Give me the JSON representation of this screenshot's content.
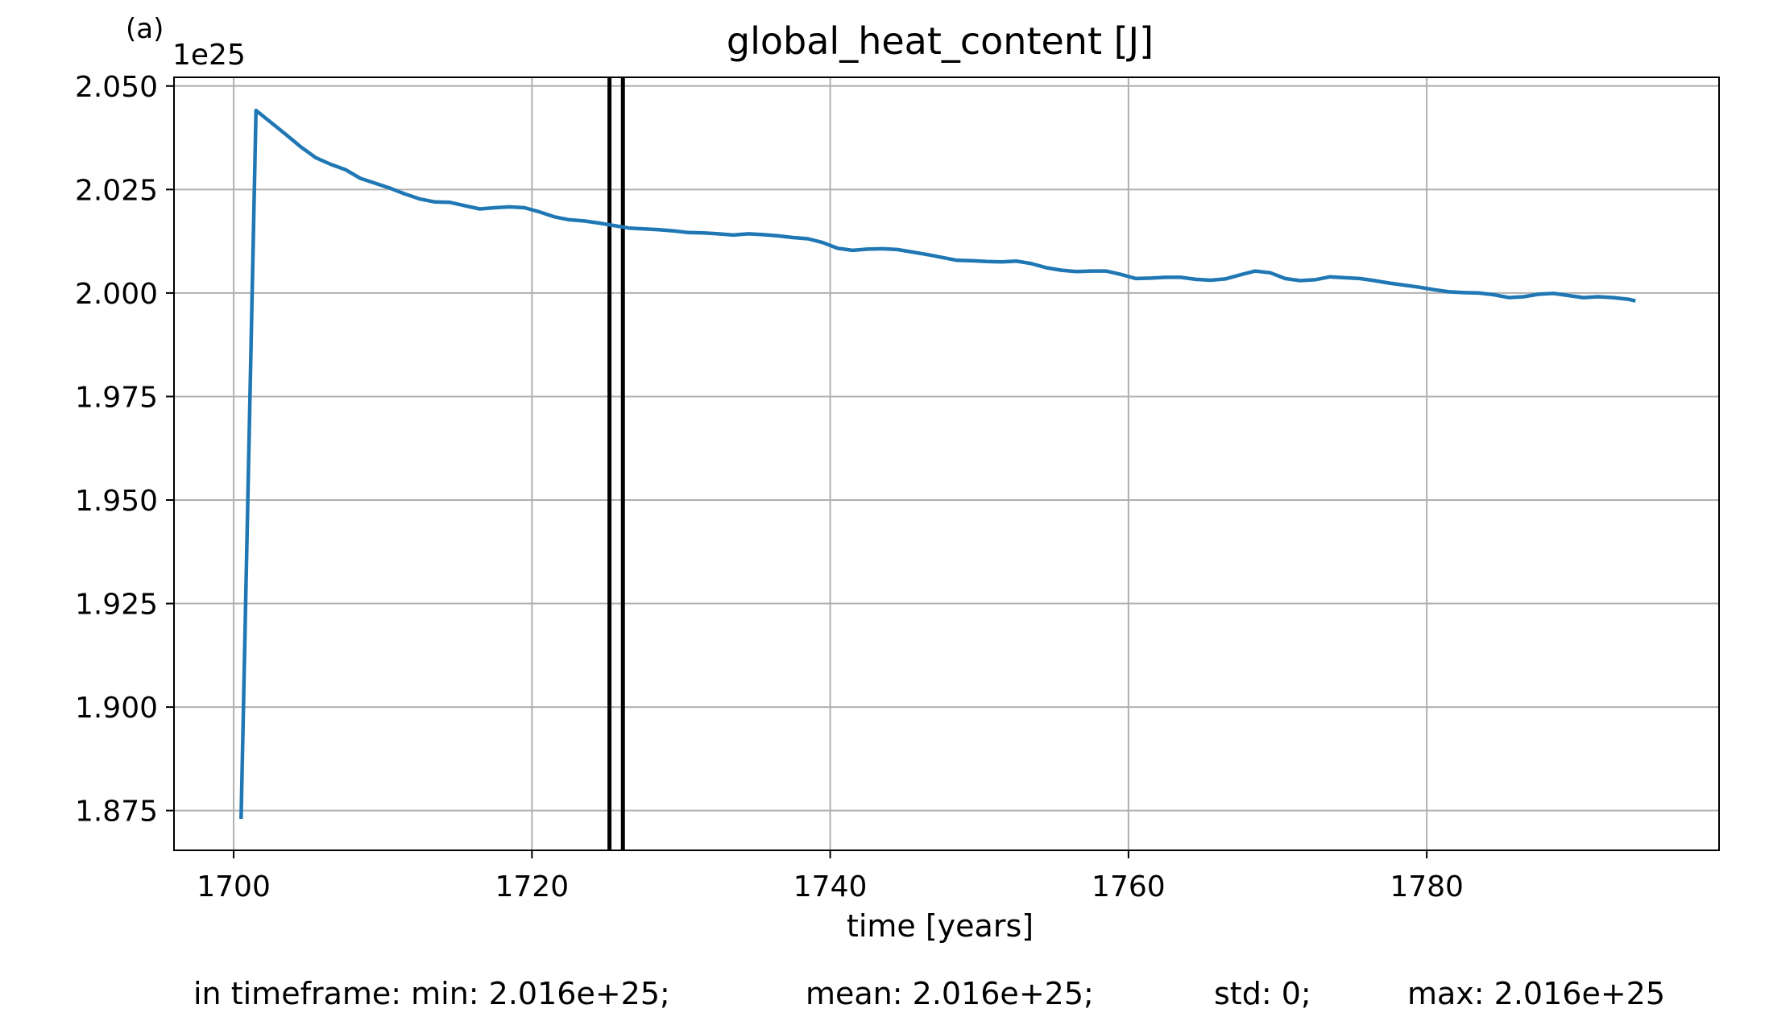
{
  "panel_label": "(a)",
  "offset_label": "1e25",
  "stats": {
    "min": "in timeframe: min: 2.016e+25;",
    "mean": "mean: 2.016e+25;",
    "std": "std: 0;",
    "max": "max: 2.016e+25"
  },
  "colors": {
    "series": "#1f77b4",
    "grid": "#b0b0b0",
    "markers": "#000000"
  },
  "chart_data": {
    "type": "line",
    "title": "global_heat_content [J]",
    "xlabel": "time [years]",
    "ylabel": "",
    "y_scale_note": "1e25",
    "xlim": [
      1696,
      1799.6
    ],
    "ylim": [
      1.8654,
      2.0521
    ],
    "xticks": [
      1700,
      1720,
      1740,
      1760,
      1780
    ],
    "xtick_labels": [
      "1700",
      "1720",
      "1740",
      "1760",
      "1780"
    ],
    "yticks": [
      1.875,
      1.9,
      1.925,
      1.95,
      1.975,
      2.0,
      2.025,
      2.05
    ],
    "ytick_labels": [
      "1.875",
      "1.900",
      "1.925",
      "1.950",
      "1.975",
      "2.000",
      "2.025",
      "2.050"
    ],
    "grid": true,
    "vertical_lines": [
      1725.2,
      1726.1
    ],
    "series": [
      {
        "x": [
          1700.5,
          1701.5,
          1702.5,
          1703.5,
          1704.5,
          1705.5,
          1706.5,
          1707.5,
          1708.5,
          1709.5,
          1710.5,
          1711.5,
          1712.5,
          1713.5,
          1714.5,
          1715.5,
          1716.5,
          1717.5,
          1718.5,
          1719.5,
          1720.5,
          1721.5,
          1722.5,
          1723.5,
          1724.5,
          1725.5,
          1726.5,
          1727.5,
          1728.5,
          1729.5,
          1730.5,
          1731.5,
          1732.5,
          1733.5,
          1734.5,
          1735.5,
          1736.5,
          1737.5,
          1738.5,
          1739.5,
          1740.5,
          1741.5,
          1742.5,
          1743.5,
          1744.5,
          1745.5,
          1746.5,
          1747.5,
          1748.5,
          1749.5,
          1750.5,
          1751.5,
          1752.5,
          1753.5,
          1754.5,
          1755.5,
          1756.5,
          1757.5,
          1758.5,
          1759.5,
          1760.5,
          1761.5,
          1762.5,
          1763.5,
          1764.5,
          1765.5,
          1766.5,
          1767.5,
          1768.5,
          1769.5,
          1770.5,
          1771.5,
          1772.5,
          1773.5,
          1774.5,
          1775.5,
          1776.5,
          1777.5,
          1778.5,
          1779.5,
          1780.5,
          1781.5,
          1782.5,
          1783.5,
          1784.5,
          1785.5,
          1786.5,
          1787.5,
          1788.5,
          1789.5,
          1790.5,
          1791.5,
          1792.5,
          1793.5,
          1794.0
        ],
        "y": [
          1.873,
          2.0441,
          2.0412,
          2.0383,
          2.0353,
          2.0327,
          2.0311,
          2.0298,
          2.0277,
          2.0265,
          2.0253,
          2.0239,
          2.0227,
          2.022,
          2.0219,
          2.0211,
          2.0203,
          2.0206,
          2.0208,
          2.0206,
          2.0196,
          2.0184,
          2.0177,
          2.0174,
          2.0169,
          2.0163,
          2.0157,
          2.0155,
          2.0153,
          2.015,
          2.0146,
          2.0145,
          2.0143,
          2.014,
          2.0143,
          2.0141,
          2.0138,
          2.0134,
          2.0131,
          2.0122,
          2.0108,
          2.0103,
          2.0106,
          2.0107,
          2.0105,
          2.0099,
          2.0093,
          2.0086,
          2.0079,
          2.0078,
          2.0076,
          2.0075,
          2.0077,
          2.0071,
          2.0061,
          2.0055,
          2.0052,
          2.0053,
          2.0053,
          2.0045,
          2.0035,
          2.0036,
          2.0038,
          2.0038,
          2.0033,
          2.0031,
          2.0034,
          2.0044,
          2.0053,
          2.0049,
          2.0035,
          2.003,
          2.0032,
          2.0039,
          2.0037,
          2.0035,
          2.003,
          2.0024,
          2.0019,
          2.0014,
          2.0008,
          2.0003,
          2.0001,
          2.0,
          1.9996,
          1.9989,
          1.9991,
          1.9997,
          1.9999,
          1.9994,
          1.9989,
          1.9991,
          1.9989,
          1.9985,
          1.9981
        ]
      }
    ]
  }
}
